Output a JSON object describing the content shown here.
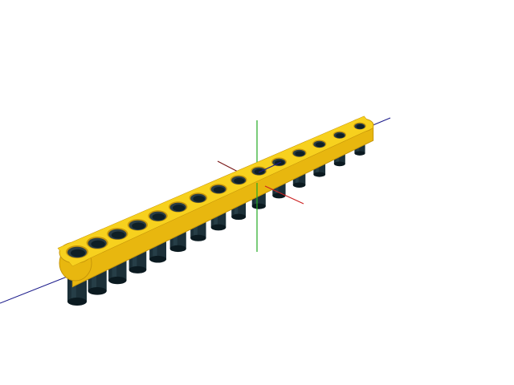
{
  "viewport": {
    "background": "#ffffff"
  },
  "scene": {
    "object": "lego-technic-beam",
    "hole_count": 15,
    "colors": {
      "beam_top": "#f7d11e",
      "beam_side": "#e8b70f",
      "beam_edge": "#c7960a",
      "hole_inner": "#0e1f26",
      "hole_rim": "#2a3d45",
      "peg_dark": "#0b1a20",
      "peg_mid": "#1c3038",
      "peg_light": "#2f4a54"
    },
    "axes": {
      "x_color": "#cc2222",
      "y_color": "#22aa22",
      "z_color": "#1a1a8a"
    }
  }
}
